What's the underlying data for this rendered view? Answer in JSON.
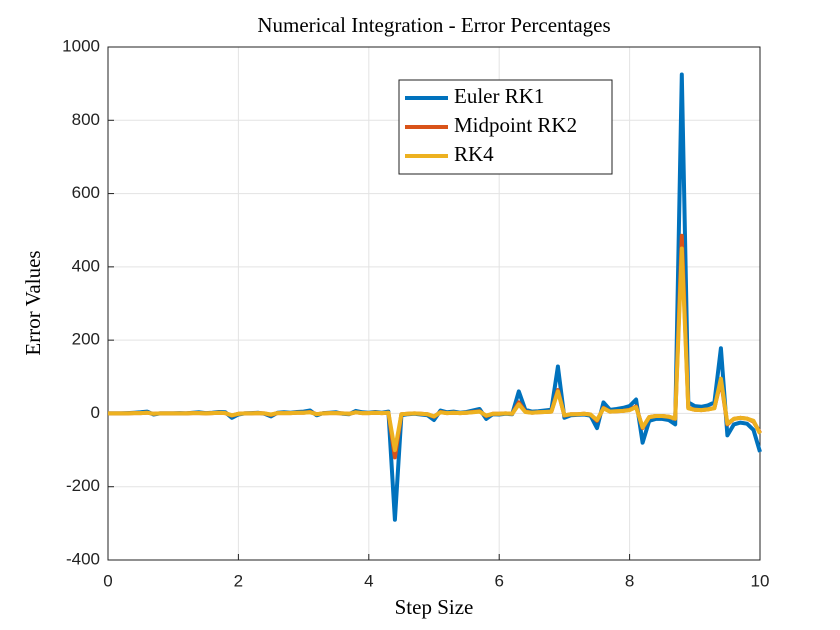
{
  "chart_data": {
    "type": "line",
    "title": "Numerical Integration - Error Percentages",
    "xlabel": "Step Size",
    "ylabel": "Error Values",
    "x": [
      0,
      0.1,
      0.2,
      0.3,
      0.4,
      0.5,
      0.6,
      0.7,
      0.8,
      0.9,
      1,
      1.1,
      1.2,
      1.3,
      1.4,
      1.5,
      1.6,
      1.7,
      1.8,
      1.9,
      2,
      2.1,
      2.2,
      2.3,
      2.4,
      2.5,
      2.6,
      2.7,
      2.8,
      2.9,
      3,
      3.1,
      3.2,
      3.3,
      3.4,
      3.5,
      3.6,
      3.7,
      3.8,
      3.9,
      4,
      4.1,
      4.2,
      4.3,
      4.4,
      4.5,
      4.6,
      4.7,
      4.8,
      4.9,
      5,
      5.1,
      5.2,
      5.3,
      5.4,
      5.5,
      5.6,
      5.7,
      5.8,
      5.9,
      6,
      6.1,
      6.2,
      6.3,
      6.4,
      6.5,
      6.6,
      6.7,
      6.8,
      6.9,
      7,
      7.1,
      7.2,
      7.3,
      7.4,
      7.5,
      7.6,
      7.7,
      7.8,
      7.9,
      8,
      8.1,
      8.2,
      8.3,
      8.4,
      8.5,
      8.6,
      8.7,
      8.8,
      8.9,
      9,
      9.1,
      9.2,
      9.3,
      9.4,
      9.5,
      9.6,
      9.7,
      9.8,
      9.9,
      10
    ],
    "series": [
      {
        "name": "Euler RK1",
        "color": "#0072BD",
        "values": [
          0,
          0,
          0,
          1,
          2,
          3,
          5,
          -3,
          0,
          0,
          0,
          1,
          0,
          2,
          3,
          1,
          2,
          4,
          3,
          -12,
          -3,
          0,
          1,
          2,
          -1,
          -8,
          2,
          3,
          2,
          4,
          5,
          8,
          -5,
          1,
          2,
          3,
          -1,
          -2,
          7,
          3,
          2,
          4,
          2,
          5,
          -290,
          -5,
          -2,
          -1,
          -3,
          -5,
          -18,
          8,
          3,
          5,
          2,
          4,
          8,
          12,
          -15,
          -2,
          -3,
          -1,
          -2,
          60,
          10,
          5,
          6,
          8,
          10,
          128,
          -12,
          -5,
          -4,
          -3,
          -6,
          -40,
          30,
          10,
          12,
          15,
          20,
          38,
          -80,
          -20,
          -15,
          -15,
          -18,
          -30,
          925,
          30,
          20,
          18,
          22,
          30,
          178,
          -60,
          -30,
          -25,
          -28,
          -45,
          -105
        ]
      },
      {
        "name": "Midpoint RK2",
        "color": "#D95319",
        "values": [
          0,
          0,
          0,
          0,
          1,
          1,
          2,
          -1,
          0,
          0,
          0,
          0,
          0,
          1,
          1,
          0,
          1,
          2,
          1,
          -6,
          -1,
          0,
          0,
          1,
          0,
          -4,
          1,
          1,
          1,
          2,
          2,
          4,
          -2,
          0,
          1,
          1,
          0,
          -1,
          3,
          1,
          1,
          2,
          1,
          2,
          -120,
          -2,
          -1,
          0,
          -1,
          -2,
          -9,
          4,
          1,
          2,
          1,
          2,
          4,
          6,
          -7,
          -1,
          -1,
          0,
          -1,
          30,
          5,
          2,
          3,
          4,
          5,
          64,
          -6,
          -2,
          -2,
          -1,
          -3,
          -20,
          15,
          5,
          6,
          7,
          10,
          19,
          -40,
          -10,
          -7,
          -7,
          -9,
          -15,
          485,
          15,
          10,
          9,
          11,
          15,
          90,
          -30,
          -15,
          -12,
          -14,
          -22,
          -53
        ]
      },
      {
        "name": "RK4",
        "color": "#EDB120",
        "values": [
          0,
          0,
          0,
          0,
          1,
          1,
          2,
          -1,
          0,
          0,
          0,
          0,
          0,
          1,
          1,
          0,
          1,
          2,
          1,
          -5,
          -1,
          0,
          0,
          1,
          0,
          -3,
          1,
          1,
          1,
          2,
          2,
          3,
          -2,
          0,
          1,
          1,
          0,
          -1,
          3,
          1,
          1,
          2,
          1,
          2,
          -100,
          -2,
          -1,
          0,
          -1,
          -2,
          -8,
          3,
          1,
          2,
          1,
          2,
          3,
          5,
          -6,
          -1,
          -1,
          0,
          -1,
          25,
          4,
          2,
          3,
          4,
          5,
          60,
          -5,
          -2,
          -2,
          -1,
          -3,
          -18,
          14,
          5,
          6,
          7,
          9,
          17,
          -38,
          -10,
          -7,
          -7,
          -9,
          -14,
          450,
          14,
          10,
          9,
          11,
          14,
          95,
          -28,
          -15,
          -12,
          -14,
          -20,
          -55
        ]
      }
    ],
    "xlim": [
      0,
      10
    ],
    "xticks": [
      0,
      2,
      4,
      6,
      8,
      10
    ],
    "ylim": [
      -400,
      1000
    ],
    "yticks": [
      -400,
      -200,
      0,
      200,
      400,
      600,
      800,
      1000
    ],
    "grid": true,
    "legend": "top"
  }
}
